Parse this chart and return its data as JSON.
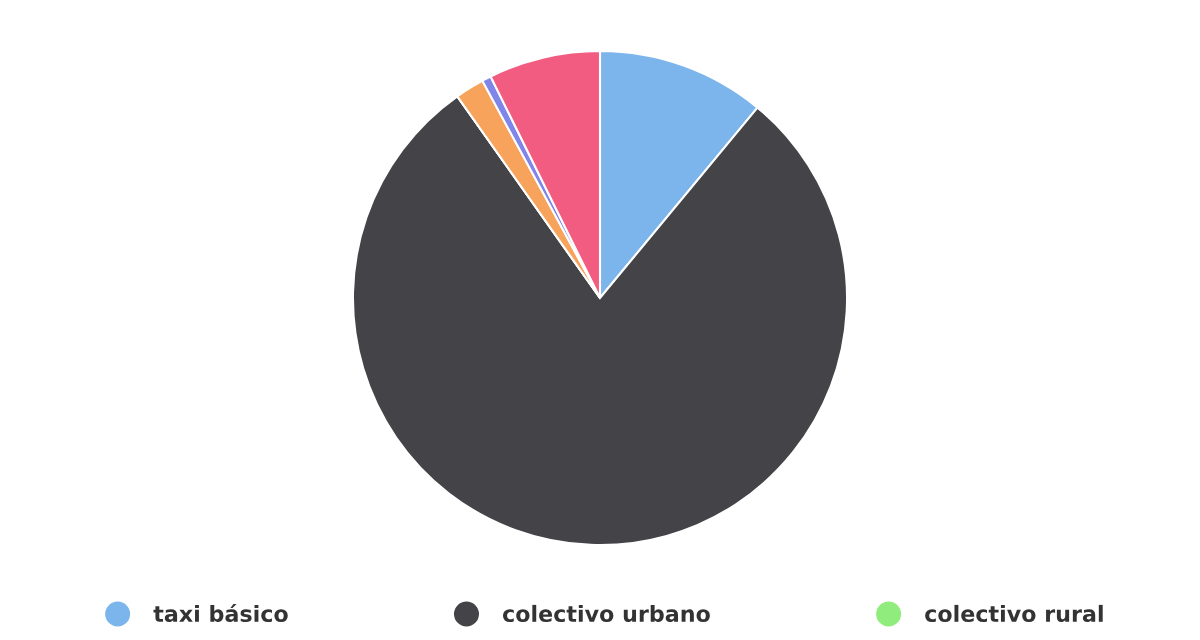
{
  "chart_data": {
    "type": "pie",
    "categories": [
      "taxi básico",
      "colectivo urbano",
      "colectivo rural",
      null,
      null,
      null
    ],
    "values": [
      11.0,
      79.2,
      0,
      1.9,
      0.6,
      7.3
    ],
    "colors": [
      "#7cb5ec",
      "#434348",
      "#90ed7d",
      "#f7a35c",
      "#8085e9",
      "#f15c80"
    ],
    "legend": "bottom"
  }
}
